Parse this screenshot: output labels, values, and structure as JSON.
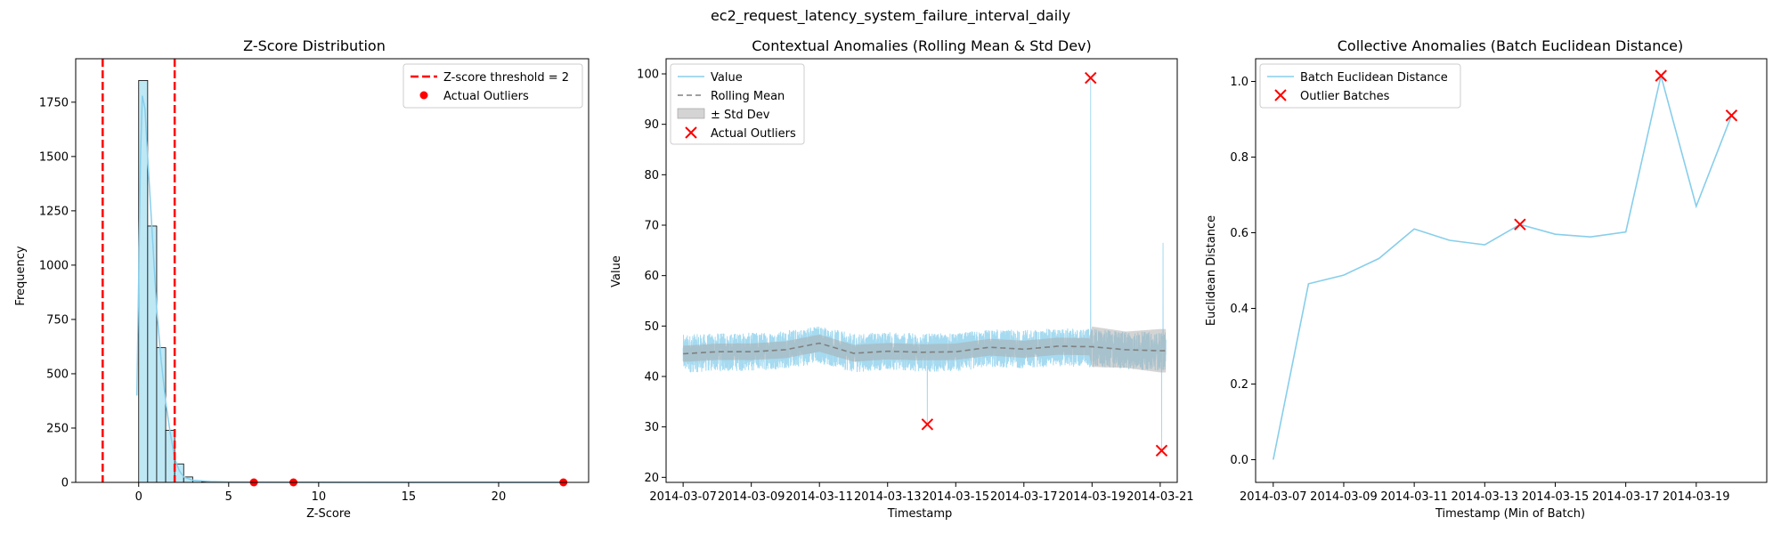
{
  "figure": {
    "suptitle": "ec2_request_latency_system_failure_interval_daily"
  },
  "colors": {
    "accent_red": "#ff0000",
    "skyblue": "#87ceeb",
    "hist_fill": "#bfe8f5",
    "rolling_gray": "#808080",
    "band_gray": "#a9a9a9"
  },
  "chart_data": [
    {
      "type": "histogram",
      "title": "Z-Score Distribution",
      "xlabel": "Z-Score",
      "ylabel": "Frequency",
      "xlim": [
        -3.5,
        25
      ],
      "ylim": [
        0,
        1950
      ],
      "xticks": [
        0,
        5,
        10,
        15,
        20
      ],
      "yticks": [
        0,
        250,
        500,
        750,
        1000,
        1250,
        1500,
        1750
      ],
      "grid": false,
      "legend_position": "top-right",
      "legend": [
        "Z-score threshold = 2",
        "Actual Outliers"
      ],
      "threshold_lines": [
        -2,
        2
      ],
      "bins": [
        {
          "x0": 0.0,
          "x1": 0.5,
          "count": 1850
        },
        {
          "x0": 0.5,
          "x1": 1.0,
          "count": 1180
        },
        {
          "x0": 1.0,
          "x1": 1.5,
          "count": 620
        },
        {
          "x0": 1.5,
          "x1": 2.0,
          "count": 240
        },
        {
          "x0": 2.0,
          "x1": 2.5,
          "count": 85
        },
        {
          "x0": 2.5,
          "x1": 3.0,
          "count": 25
        },
        {
          "x0": 3.0,
          "x1": 3.5,
          "count": 8
        },
        {
          "x0": 3.5,
          "x1": 4.0,
          "count": 3
        }
      ],
      "kde": [
        [
          -0.1,
          400
        ],
        [
          0.0,
          930
        ],
        [
          0.1,
          1500
        ],
        [
          0.2,
          1780
        ],
        [
          0.35,
          1720
        ],
        [
          0.5,
          1500
        ],
        [
          0.75,
          1150
        ],
        [
          1.0,
          800
        ],
        [
          1.25,
          560
        ],
        [
          1.5,
          370
        ],
        [
          1.75,
          230
        ],
        [
          2.0,
          110
        ],
        [
          2.25,
          55
        ],
        [
          2.5,
          25
        ],
        [
          3.0,
          10
        ],
        [
          4.0,
          4
        ],
        [
          5.0,
          2
        ],
        [
          8.0,
          1
        ],
        [
          15.0,
          0
        ],
        [
          23.6,
          0
        ]
      ],
      "outliers": [
        6.4,
        8.6,
        23.6
      ]
    },
    {
      "type": "line",
      "title": "Contextual Anomalies (Rolling Mean & Std Dev)",
      "xlabel": "Timestamp",
      "ylabel": "Value",
      "x_range": [
        "2014-03-06T12:00",
        "2014-03-21T12:00"
      ],
      "ylim": [
        19,
        103
      ],
      "xticks": [
        "2014-03-07",
        "2014-03-09",
        "2014-03-11",
        "2014-03-13",
        "2014-03-15",
        "2014-03-17",
        "2014-03-19",
        "2014-03-21"
      ],
      "yticks": [
        20,
        30,
        40,
        50,
        60,
        70,
        80,
        90,
        100
      ],
      "grid": false,
      "legend_position": "top-left",
      "legend": [
        "Value",
        "Rolling Mean",
        "± Std Dev",
        "Actual Outliers"
      ],
      "value_series": {
        "name": "Value",
        "description_points": [
          [
            "2014-03-07T00:00",
            44.5
          ],
          [
            "2014-03-08T00:00",
            44.8
          ],
          [
            "2014-03-09T00:00",
            44.9
          ],
          [
            "2014-03-10T00:00",
            45.3
          ],
          [
            "2014-03-11T00:00",
            46.4
          ],
          [
            "2014-03-12T00:00",
            44.6
          ],
          [
            "2014-03-13T00:00",
            45.1
          ],
          [
            "2014-03-14T00:00",
            44.7
          ],
          [
            "2014-03-15T00:00",
            44.8
          ],
          [
            "2014-03-16T00:00",
            45.6
          ],
          [
            "2014-03-17T00:00",
            45.4
          ],
          [
            "2014-03-18T00:00",
            45.8
          ],
          [
            "2014-03-19T00:00",
            45.6
          ],
          [
            "2014-03-20T00:00",
            45.2
          ],
          [
            "2014-03-21T00:00",
            45.0
          ]
        ],
        "noise_amplitude": 3.8,
        "spikes": [
          [
            "2014-03-14T04:00",
            30.5
          ],
          [
            "2014-03-18T23:00",
            99.2
          ],
          [
            "2014-03-21T01:00",
            25.3
          ],
          [
            "2014-03-21T02:00",
            66.5
          ]
        ]
      },
      "rolling_mean": [
        [
          "2014-03-07T00:00",
          44.5
        ],
        [
          "2014-03-08T00:00",
          44.9
        ],
        [
          "2014-03-09T00:00",
          44.9
        ],
        [
          "2014-03-10T00:00",
          45.3
        ],
        [
          "2014-03-11T00:00",
          46.6
        ],
        [
          "2014-03-12T00:00",
          44.6
        ],
        [
          "2014-03-13T00:00",
          45.0
        ],
        [
          "2014-03-14T00:00",
          44.8
        ],
        [
          "2014-03-15T00:00",
          44.9
        ],
        [
          "2014-03-16T00:00",
          45.8
        ],
        [
          "2014-03-17T00:00",
          45.4
        ],
        [
          "2014-03-18T00:00",
          46.0
        ],
        [
          "2014-03-19T00:00",
          45.9
        ],
        [
          "2014-03-20T00:00",
          45.3
        ],
        [
          "2014-03-21T00:00",
          45.1
        ]
      ],
      "std_dev": [
        [
          "2014-03-07T00:00",
          1.6
        ],
        [
          "2014-03-11T00:00",
          1.7
        ],
        [
          "2014-03-14T00:00",
          1.6
        ],
        [
          "2014-03-17T00:00",
          1.7
        ],
        [
          "2014-03-18T22:00",
          1.7
        ],
        [
          "2014-03-19T00:00",
          4.0
        ],
        [
          "2014-03-20T00:00",
          3.6
        ],
        [
          "2014-03-21T00:00",
          4.3
        ]
      ],
      "outliers": [
        [
          "2014-03-14T04:00",
          30.5
        ],
        [
          "2014-03-18T23:00",
          99.2
        ],
        [
          "2014-03-21T01:00",
          25.3
        ]
      ]
    },
    {
      "type": "line",
      "title": "Collective Anomalies (Batch Euclidean Distance)",
      "xlabel": "Timestamp (Min of Batch)",
      "ylabel": "Euclidean Distance",
      "x_range": [
        "2014-03-06T12:00",
        "2014-03-21T00:00"
      ],
      "ylim": [
        -0.06,
        1.06
      ],
      "xticks": [
        "2014-03-07",
        "2014-03-09",
        "2014-03-11",
        "2014-03-13",
        "2014-03-15",
        "2014-03-17",
        "2014-03-19"
      ],
      "yticks": [
        0.0,
        0.2,
        0.4,
        0.6,
        0.8,
        1.0
      ],
      "grid": false,
      "legend_position": "top-left",
      "legend": [
        "Batch Euclidean Distance",
        "Outlier Batches"
      ],
      "series": [
        {
          "name": "Batch Euclidean Distance",
          "points": [
            [
              "2014-03-07T00:00",
              0.0
            ],
            [
              "2014-03-08T00:00",
              0.465
            ],
            [
              "2014-03-09T00:00",
              0.488
            ],
            [
              "2014-03-10T00:00",
              0.532
            ],
            [
              "2014-03-11T00:00",
              0.61
            ],
            [
              "2014-03-12T00:00",
              0.58
            ],
            [
              "2014-03-13T00:00",
              0.568
            ],
            [
              "2014-03-14T00:00",
              0.622
            ],
            [
              "2014-03-15T00:00",
              0.596
            ],
            [
              "2014-03-16T00:00",
              0.589
            ],
            [
              "2014-03-17T00:00",
              0.602
            ],
            [
              "2014-03-18T00:00",
              1.015
            ],
            [
              "2014-03-19T00:00",
              0.67
            ],
            [
              "2014-03-20T00:00",
              0.91
            ]
          ]
        }
      ],
      "outliers": [
        [
          "2014-03-14T00:00",
          0.622
        ],
        [
          "2014-03-18T00:00",
          1.015
        ],
        [
          "2014-03-20T00:00",
          0.91
        ]
      ]
    }
  ]
}
